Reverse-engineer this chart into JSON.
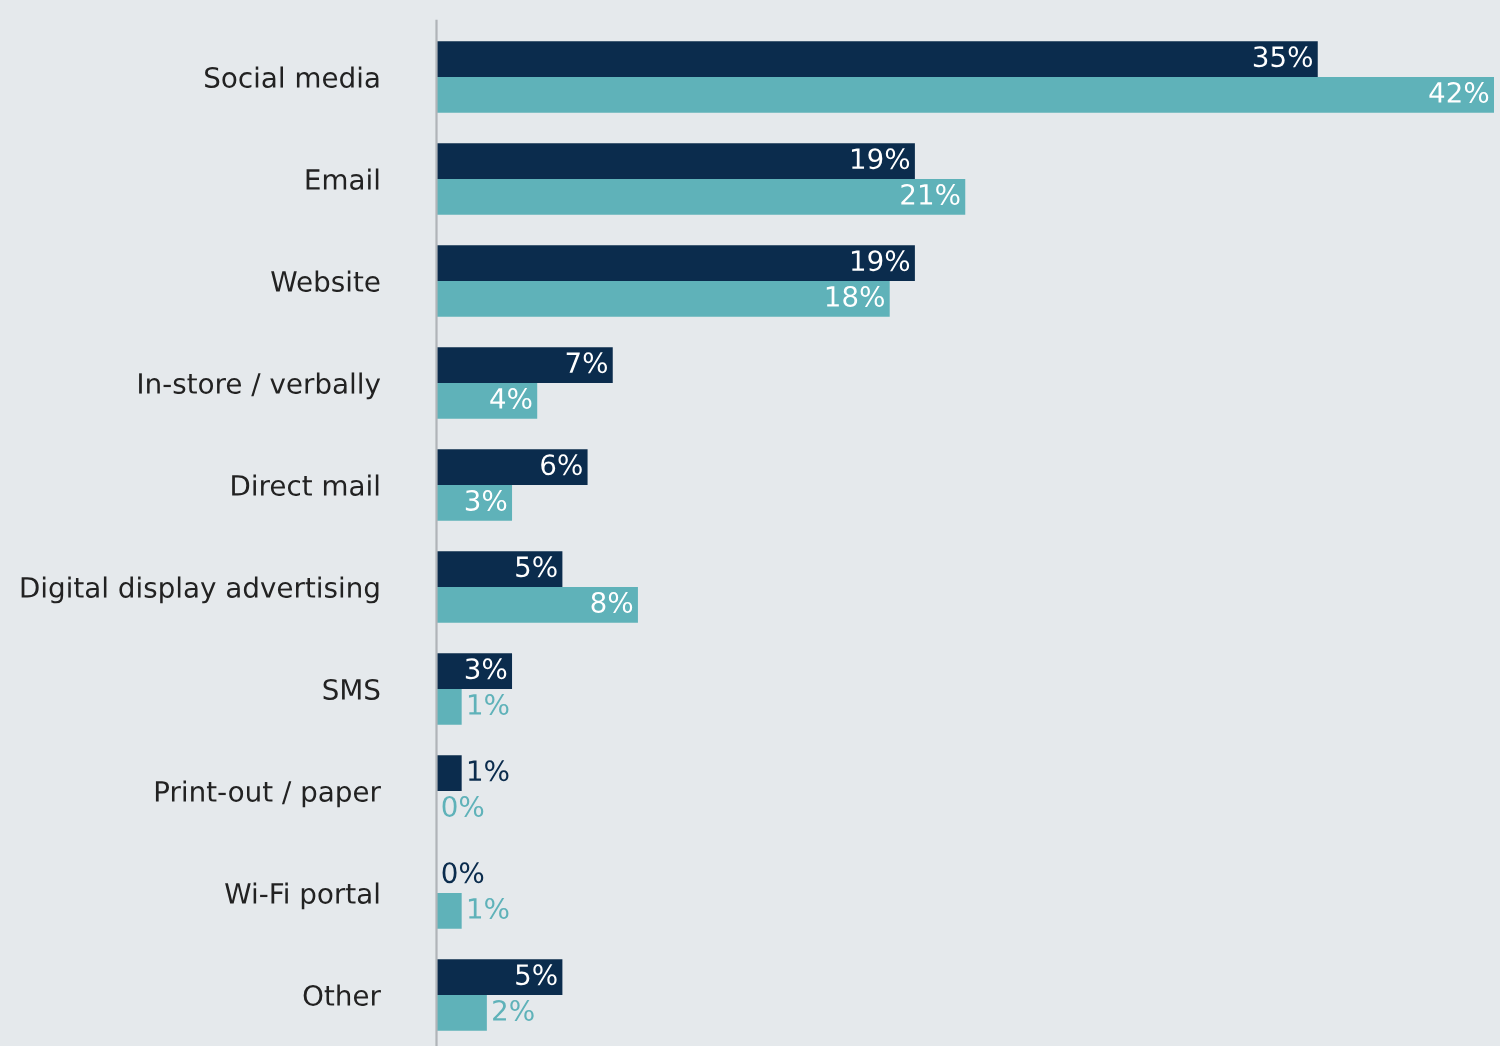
{
  "chart_data": {
    "type": "bar",
    "orientation": "horizontal",
    "legend": false,
    "grid": false,
    "categories": [
      "Social media",
      "Email",
      "Website",
      "In-store / verbally",
      "Direct mail",
      "Digital display advertising",
      "SMS",
      "Print-out / paper",
      "Wi-Fi portal",
      "Other"
    ],
    "series": [
      {
        "color": "#0b2c4d",
        "values": [
          35,
          19,
          19,
          7,
          6,
          5,
          3,
          1,
          0,
          5
        ],
        "value_labels": [
          "35%",
          "19%",
          "19%",
          "7%",
          "6%",
          "5%",
          "3%",
          "1%",
          "0%",
          "5%"
        ]
      },
      {
        "color": "#5fb2b9",
        "values": [
          42,
          21,
          18,
          4,
          3,
          8,
          1,
          0,
          1,
          2
        ],
        "value_labels": [
          "42%",
          "21%",
          "18%",
          "4%",
          "3%",
          "8%",
          "1%",
          "0%",
          "1%",
          "2%"
        ]
      }
    ]
  }
}
